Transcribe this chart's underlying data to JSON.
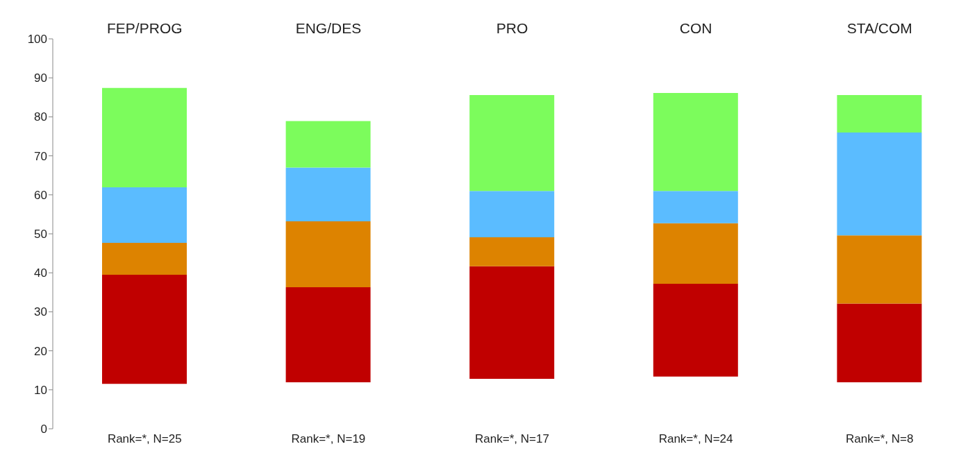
{
  "chart_data": {
    "type": "bar",
    "categories": [
      "FEP/PROG",
      "ENG/DES",
      "PRO",
      "CON",
      "STA/COM"
    ],
    "annotations": [
      "Rank=*, N=25",
      "Rank=*, N=19",
      "Rank=*, N=17",
      "Rank=*, N=24",
      "Rank=*, N=8"
    ],
    "series": [
      {
        "color": "#c00000",
        "base": [
          11.5,
          11.9,
          12.8,
          13.4,
          11.9
        ],
        "values": [
          28,
          24.4,
          28.9,
          23.8,
          20.2
        ]
      },
      {
        "color": "#dd8300",
        "base": [
          39.5,
          36.3,
          41.7,
          37.2,
          32.1
        ],
        "values": [
          8.2,
          16.9,
          7.4,
          15.5,
          17.5
        ]
      },
      {
        "color": "#5bbcff",
        "base": [
          47.7,
          53.2,
          49.1,
          52.7,
          49.6
        ],
        "values": [
          14.2,
          13.8,
          11.9,
          8.3,
          26.4
        ]
      },
      {
        "color": "#7cfc5c",
        "base": [
          61.9,
          67,
          61,
          61,
          76
        ],
        "values": [
          25.5,
          11.9,
          24.6,
          25.1,
          9.6
        ]
      }
    ],
    "ylim": [
      0,
      100
    ],
    "yticks": [
      0,
      10,
      20,
      30,
      40,
      50,
      60,
      70,
      80,
      90,
      100
    ],
    "grid": false,
    "legend": false
  }
}
